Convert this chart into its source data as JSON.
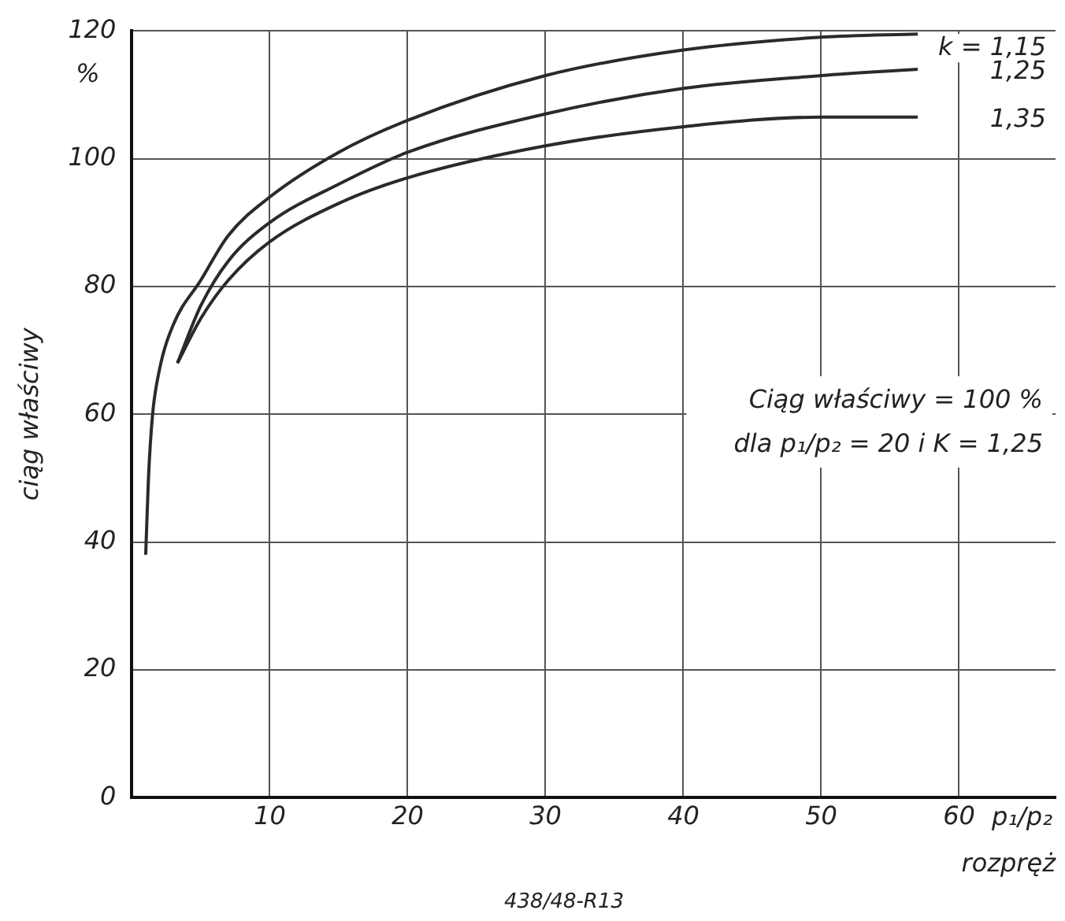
{
  "chart_data": {
    "type": "line",
    "ylabel": "ciąg właściwy",
    "xlabel": "rozpręż",
    "annotations": [
      "%",
      "p₁/p₂",
      "Ciąg właściwy = 100 %",
      "dla p₁/p₂ = 20 i K = 1,25",
      "438/48-R13"
    ],
    "xlim": [
      0,
      67
    ],
    "xticks": [
      10,
      20,
      30,
      40,
      50,
      60
    ],
    "ylim": [
      0,
      120
    ],
    "yticks": [
      0,
      20,
      40,
      60,
      80,
      100,
      120
    ],
    "grid": true,
    "legend": false,
    "marker": "none",
    "line_style": "solid",
    "series": [
      {
        "name": "k = 1,15",
        "color": "#2a2a2a",
        "x": [
          1,
          1.2,
          1.5,
          2,
          3,
          5,
          7,
          10,
          15,
          20,
          30,
          40,
          50,
          57
        ],
        "values": [
          38,
          50,
          60,
          67,
          74,
          81,
          88,
          94,
          101,
          106,
          113,
          117,
          119,
          119.5
        ]
      },
      {
        "name": "1,25",
        "color": "#2a2a2a",
        "x": [
          3.3,
          5,
          7,
          10,
          15,
          20,
          30,
          40,
          50,
          57
        ],
        "values": [
          68,
          77,
          84,
          90,
          96,
          101,
          107,
          111,
          113,
          114
        ]
      },
      {
        "name": "1,35",
        "color": "#2a2a2a",
        "x": [
          3.3,
          5,
          7,
          10,
          15,
          20,
          30,
          40,
          50,
          57
        ],
        "values": [
          68,
          75,
          81,
          87,
          93,
          97,
          102,
          105,
          106.5,
          106.5
        ]
      }
    ]
  }
}
